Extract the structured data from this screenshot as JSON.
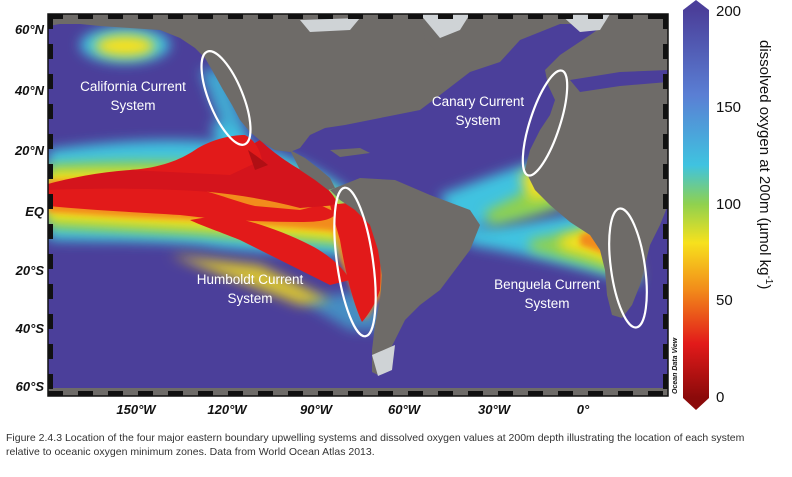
{
  "map": {
    "latitude_labels": [
      "60°N",
      "40°N",
      "20°N",
      "EQ",
      "20°S",
      "40°S",
      "60°S"
    ],
    "longitude_labels": [
      "150°W",
      "120°W",
      "90°W",
      "60°W",
      "30°W",
      "0°"
    ],
    "watermark": "Ocean Data View",
    "regions": [
      {
        "line1": "California Current",
        "line2": "System"
      },
      {
        "line1": "Canary Current",
        "line2": "System"
      },
      {
        "line1": "Humboldt Current",
        "line2": "System"
      },
      {
        "line1": "Benguela Current",
        "line2": "System"
      }
    ],
    "colors": {
      "ocean_high_oxygen": "#4b3f9a",
      "land": "#6e6b68",
      "ice": "#cfd3d6",
      "low_oxygen": "#d4141c",
      "ellipse_outline": "#ffffff"
    }
  },
  "colorbar": {
    "title_prefix": "dissolved oxygen at 200m (",
    "title_unit_mu": "µ",
    "title_unit_rest": "mol kg",
    "title_superscript": "-1",
    "title_suffix": ")",
    "range": [
      0,
      200
    ],
    "ticks": [
      "200",
      "150",
      "100",
      "50",
      "0"
    ],
    "gradient": [
      "#8b0a0a",
      "#e21a1a",
      "#f28c1a",
      "#f7e11d",
      "#8fd14f",
      "#3fc3e0",
      "#5a7fd4",
      "#4b3f9a"
    ]
  },
  "caption": "Figure 2.4.3  Location of the four major eastern boundary upwelling systems and dissolved oxygen values at 200m depth illustrating the location of each system relative to oceanic oxygen minimum zones. Data from World Ocean Atlas 2013."
}
